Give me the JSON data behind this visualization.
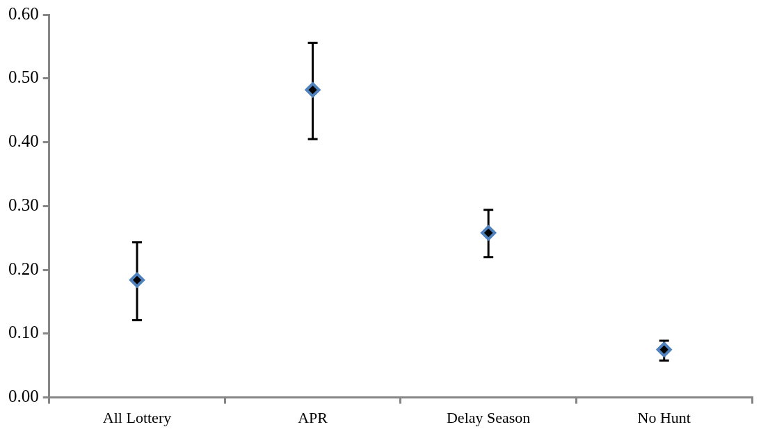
{
  "chart_data": {
    "type": "scatter",
    "categories": [
      "All Lottery",
      "APR",
      "Delay Season",
      "No Hunt"
    ],
    "series": [
      {
        "color": "#4f81bd",
        "values": [
          0.184,
          0.482,
          0.258,
          0.075
        ],
        "errors": [
          [
            0.121,
            0.243
          ],
          [
            0.405,
            0.556
          ],
          [
            0.22,
            0.294
          ],
          [
            0.058,
            0.089
          ]
        ]
      }
    ],
    "ylim": [
      0,
      0.6
    ],
    "yticks": [
      {
        "value": 0,
        "label": "0.00"
      },
      {
        "value": 0.1,
        "label": "0.10"
      },
      {
        "value": 0.2,
        "label": "0.20"
      },
      {
        "value": 0.3,
        "label": "0.30"
      },
      {
        "value": 0.4,
        "label": "0.40"
      },
      {
        "value": 0.5,
        "label": "0.50"
      },
      {
        "value": 0.6,
        "label": "0.60"
      }
    ],
    "marker": "diamond",
    "grid": false,
    "legend": false
  }
}
